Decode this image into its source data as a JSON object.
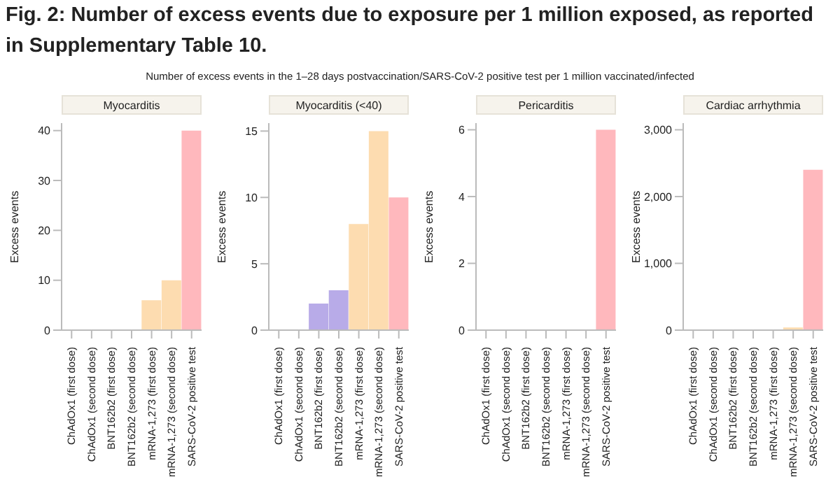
{
  "chart_data": [
    {
      "type": "bar",
      "title": "Myocarditis",
      "ylabel": "Excess events",
      "annotations": [
        "Fig. 2: Number of excess events due to exposure per 1  million exposed, as reported in Supplementary Table 10.",
        "Number of excess events in the 1–28 days postvaccination/SARS-CoV-2 positive test per 1 million vaccinated/infected"
      ],
      "categories": [
        "ChAdOx1 (first dose)",
        "ChAdOx1 (second dose)",
        "BNT162b2 (first dose)",
        "BNT162b2 (second dose)",
        "mRNA-1,273 (first dose)",
        "mRNA-1,273 (second dose)",
        "SARS-CoV-2 positive test"
      ],
      "values": [
        0,
        0,
        0,
        0,
        6,
        10,
        40
      ],
      "colors": [
        "#a9dcc0",
        "#a9dcc0",
        "#b8abe8",
        "#b8abe8",
        "#fddcb0",
        "#fddcb0",
        "#ffb8bd"
      ],
      "ylim": [
        0,
        41.5
      ],
      "yticks": [
        0,
        10,
        20,
        30,
        40
      ]
    },
    {
      "type": "bar",
      "title": "Myocarditis (<40)",
      "ylabel": "Excess events",
      "categories": [
        "ChAdOx1 (first dose)",
        "ChAdOx1 (second dose)",
        "BNT162b2 (first dose)",
        "BNT162b2 (second dose)",
        "mRNA-1,273 (first dose)",
        "mRNA-1,273 (second dose)",
        "SARS-CoV-2 positive test"
      ],
      "values": [
        0,
        0,
        2,
        3,
        8,
        15,
        10
      ],
      "colors": [
        "#a9dcc0",
        "#a9dcc0",
        "#b8abe8",
        "#b8abe8",
        "#fddcb0",
        "#fddcb0",
        "#ffb8bd"
      ],
      "ylim": [
        0,
        15.6
      ],
      "yticks": [
        0,
        5,
        10,
        15
      ]
    },
    {
      "type": "bar",
      "title": "Pericarditis",
      "ylabel": "Excess events",
      "categories": [
        "ChAdOx1 (first dose)",
        "ChAdOx1 (second dose)",
        "BNT162b2 (first dose)",
        "BNT162b2 (second dose)",
        "mRNA-1,273 (first dose)",
        "mRNA-1,273 (second dose)",
        "SARS-CoV-2 positive test"
      ],
      "values": [
        0,
        0,
        0,
        0,
        0,
        0,
        6
      ],
      "colors": [
        "#a9dcc0",
        "#a9dcc0",
        "#b8abe8",
        "#b8abe8",
        "#fddcb0",
        "#fddcb0",
        "#ffb8bd"
      ],
      "ylim": [
        0,
        6.2
      ],
      "yticks": [
        0,
        2,
        4,
        6
      ]
    },
    {
      "type": "bar",
      "title": "Cardiac arrhythmia",
      "ylabel": "Excess events",
      "categories": [
        "ChAdOx1 (first dose)",
        "ChAdOx1 (second dose)",
        "BNT162b2 (first dose)",
        "BNT162b2 (second dose)",
        "mRNA-1,273 (first dose)",
        "mRNA-1,273 (second dose)",
        "SARS-CoV-2 positive test"
      ],
      "values": [
        0,
        0,
        0,
        0,
        0,
        40,
        2400
      ],
      "colors": [
        "#a9dcc0",
        "#a9dcc0",
        "#b8abe8",
        "#b8abe8",
        "#fddcb0",
        "#fddcb0",
        "#ffb8bd"
      ],
      "ylim": [
        0,
        3100
      ],
      "yticks": [
        0,
        {
          "value": 1000,
          "label": "1,000"
        },
        {
          "value": 2000,
          "label": "2,000"
        },
        {
          "value": 3000,
          "label": "3,000"
        }
      ]
    }
  ]
}
